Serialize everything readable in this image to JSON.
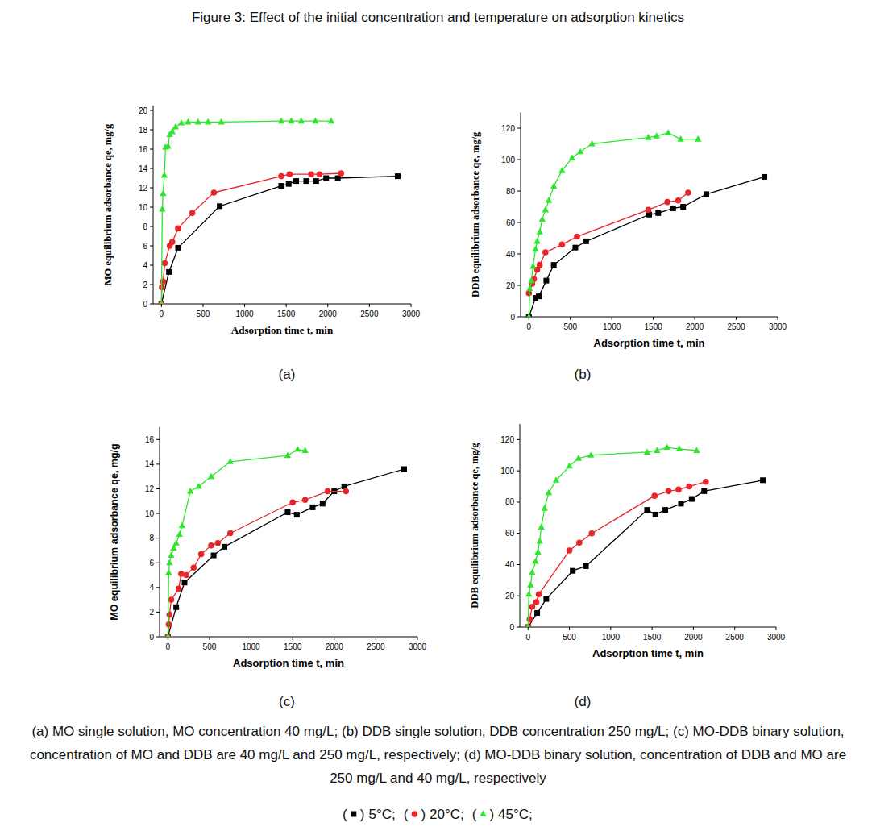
{
  "title": "Figure 3: Effect of the initial concentration and temperature on adsorption kinetics",
  "caption": "(a) MO single solution, MO concentration 40 mg/L; (b) DDB single solution, DDB concentration 250 mg/L; (c) MO-DDB binary solution, concentration of MO and DDB are 40 mg/L and 250 mg/L, respectively; (d) MO-DDB binary solution, concentration of DDB and MO are 250 mg/L and 40 mg/L, respectively",
  "legend_format": {
    "open": "(",
    "close": ")",
    "separator": ";"
  },
  "chart_data": [
    {
      "type": "line",
      "title": "(a)",
      "x_label": "Adsorption time t,  min",
      "y_label": "MO equilibrium adsorbance  qe,  mg/g",
      "xlim": [
        -100,
        3000
      ],
      "xticks": [
        0,
        500,
        1000,
        1500,
        2000,
        2500,
        3000
      ],
      "ylim": [
        0,
        20.5
      ],
      "yticks": [
        0,
        2,
        4,
        6,
        8,
        10,
        12,
        14,
        16,
        18,
        20
      ],
      "grid": false,
      "series": [
        {
          "name": "5°C",
          "color": "#000000",
          "marker": "square",
          "line_style": "solid",
          "x": [
            0,
            90,
            200,
            700,
            1440,
            1530,
            1620,
            1740,
            1860,
            1980,
            2120,
            2840
          ],
          "values": [
            0,
            3.3,
            5.8,
            10.1,
            12.2,
            12.4,
            12.7,
            12.7,
            12.7,
            13.0,
            13.0,
            13.2
          ]
        },
        {
          "name": "20°C",
          "color": "#e8262a",
          "marker": "circle",
          "line_style": "solid",
          "x": [
            0,
            5,
            20,
            40,
            100,
            130,
            200,
            370,
            630,
            1440,
            1540,
            1800,
            1900,
            2160
          ],
          "values": [
            0,
            1.7,
            2.3,
            4.2,
            6.0,
            6.4,
            7.8,
            9.4,
            11.5,
            13.2,
            13.4,
            13.4,
            13.4,
            13.5
          ]
        },
        {
          "name": "45°C",
          "color": "#2ee62e",
          "marker": "triangle",
          "line_style": "solid",
          "x": [
            0,
            10,
            20,
            35,
            50,
            80,
            100,
            130,
            170,
            240,
            320,
            440,
            560,
            720,
            1440,
            1560,
            1680,
            1850,
            2040
          ],
          "values": [
            0,
            9.8,
            11.4,
            13.3,
            16.2,
            16.3,
            17.5,
            17.8,
            18.3,
            18.7,
            18.8,
            18.8,
            18.8,
            18.8,
            18.9,
            18.9,
            18.9,
            18.9,
            18.9
          ]
        }
      ]
    },
    {
      "type": "line",
      "title": "(b)",
      "x_label": "Adsorption time t,  min",
      "y_label": "DDB equilibrium adsorbance  qe,  mg/g",
      "xlim": [
        -100,
        3000
      ],
      "xticks": [
        0,
        500,
        1000,
        1500,
        2000,
        2500,
        3000
      ],
      "ylim": [
        0,
        130
      ],
      "yticks": [
        0,
        20,
        40,
        60,
        80,
        100,
        120
      ],
      "grid": false,
      "series": [
        {
          "name": "5°C",
          "color": "#000000",
          "marker": "square",
          "line_style": "solid",
          "x": [
            0,
            80,
            120,
            210,
            300,
            560,
            690,
            1450,
            1560,
            1740,
            1860,
            2140,
            2840
          ],
          "values": [
            0,
            12,
            13,
            23,
            33,
            44,
            48,
            65,
            66,
            69,
            70,
            78,
            89
          ]
        },
        {
          "name": "20°C",
          "color": "#e8262a",
          "marker": "circle",
          "line_style": "solid",
          "x": [
            0,
            40,
            60,
            100,
            130,
            200,
            400,
            580,
            1440,
            1670,
            1800,
            1920
          ],
          "values": [
            15,
            21,
            24,
            30,
            33,
            41,
            46,
            51,
            68,
            73,
            74,
            79
          ]
        },
        {
          "name": "45°C",
          "color": "#2ee62e",
          "marker": "triangle",
          "line_style": "solid",
          "x": [
            0,
            10,
            30,
            50,
            80,
            100,
            130,
            160,
            200,
            240,
            300,
            400,
            520,
            620,
            760,
            1440,
            1540,
            1680,
            1830,
            2040
          ],
          "values": [
            0,
            18,
            23,
            32,
            43,
            48,
            54,
            62,
            68,
            74,
            83,
            93,
            101,
            105,
            110,
            114,
            115,
            117,
            113,
            113
          ]
        }
      ]
    },
    {
      "type": "line",
      "title": "(c)",
      "x_label": "Adsorption time t,  min",
      "y_label": "MO  equilibrium adsorbance  qe,  mg/g",
      "xlim": [
        -100,
        3000
      ],
      "xticks": [
        0,
        500,
        1000,
        1500,
        2000,
        2500,
        3000
      ],
      "ylim": [
        0,
        17
      ],
      "yticks": [
        0,
        2,
        4,
        6,
        8,
        10,
        12,
        14,
        16
      ],
      "grid": false,
      "series": [
        {
          "name": "5°C",
          "color": "#000000",
          "marker": "square",
          "line_style": "solid",
          "x": [
            0,
            100,
            200,
            550,
            680,
            1440,
            1550,
            1740,
            1860,
            2000,
            2120,
            2840
          ],
          "values": [
            0,
            2.4,
            4.4,
            6.6,
            7.3,
            10.1,
            9.9,
            10.5,
            10.8,
            11.8,
            12.2,
            13.6
          ]
        },
        {
          "name": "20°C",
          "color": "#e8262a",
          "marker": "circle",
          "line_style": "solid",
          "x": [
            0,
            10,
            20,
            40,
            130,
            160,
            220,
            310,
            400,
            520,
            600,
            750,
            1500,
            1650,
            1920,
            2140
          ],
          "values": [
            0,
            1.0,
            1.8,
            3.0,
            3.9,
            5.1,
            5.0,
            5.6,
            6.7,
            7.4,
            7.6,
            8.4,
            10.9,
            11.1,
            11.8,
            11.8
          ]
        },
        {
          "name": "45°C",
          "color": "#2ee62e",
          "marker": "triangle",
          "line_style": "solid",
          "x": [
            0,
            10,
            20,
            40,
            70,
            100,
            140,
            170,
            270,
            370,
            520,
            750,
            1440,
            1560,
            1650
          ],
          "values": [
            0,
            5.2,
            6.0,
            6.6,
            7.2,
            7.6,
            8.3,
            9.0,
            11.8,
            12.2,
            13.0,
            14.2,
            14.7,
            15.2,
            15.1
          ]
        }
      ]
    },
    {
      "type": "line",
      "title": "(d)",
      "x_label": "Adsorption time t,  min",
      "y_label": "DDB equilibrium adsorbance  qe,  mg/g",
      "xlim": [
        -100,
        3000
      ],
      "xticks": [
        0,
        500,
        1000,
        1500,
        2000,
        2500,
        3000
      ],
      "ylim": [
        0,
        130
      ],
      "yticks": [
        0,
        20,
        40,
        60,
        80,
        100,
        120
      ],
      "grid": false,
      "series": [
        {
          "name": "5°C",
          "color": "#000000",
          "marker": "square",
          "line_style": "solid",
          "x": [
            0,
            110,
            220,
            540,
            700,
            1440,
            1540,
            1660,
            1850,
            1980,
            2130,
            2840
          ],
          "values": [
            0,
            9,
            18,
            36,
            39,
            75,
            72,
            75,
            79,
            82,
            87,
            94
          ]
        },
        {
          "name": "20°C",
          "color": "#e8262a",
          "marker": "circle",
          "line_style": "solid",
          "x": [
            0,
            20,
            50,
            100,
            130,
            500,
            620,
            770,
            1530,
            1700,
            1820,
            1950,
            2150
          ],
          "values": [
            0,
            5,
            13,
            16,
            21,
            49,
            54,
            60,
            84,
            87,
            88,
            90,
            93
          ]
        },
        {
          "name": "45°C",
          "color": "#2ee62e",
          "marker": "triangle",
          "line_style": "solid",
          "x": [
            0,
            10,
            30,
            50,
            90,
            120,
            140,
            160,
            200,
            250,
            340,
            500,
            610,
            760,
            1440,
            1560,
            1680,
            1830,
            2040
          ],
          "values": [
            0,
            21,
            27,
            35,
            42,
            48,
            55,
            64,
            76,
            86,
            94,
            103,
            108,
            110,
            112,
            113,
            115,
            114,
            113
          ]
        }
      ]
    }
  ]
}
